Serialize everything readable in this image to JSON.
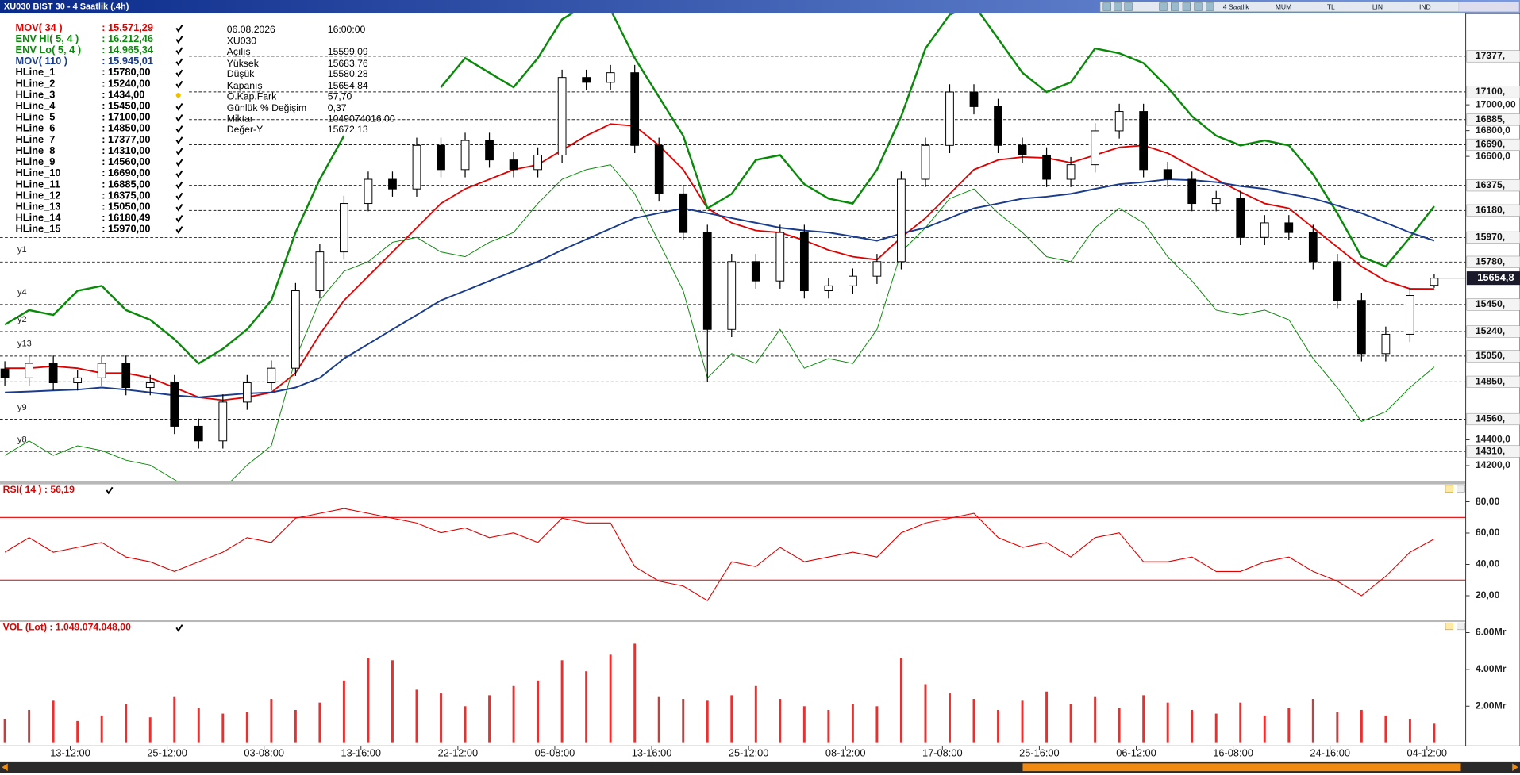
{
  "window": {
    "title": "XU030 BIST 30 - 4 Saatlik (.4h)",
    "toolbar": [
      "4 Saatlik",
      "MUM",
      "TL",
      "LIN",
      "IND"
    ]
  },
  "info": [
    [
      "06.08.2026",
      "16:00:00"
    ],
    [
      "XU030"
    ],
    [
      "Açılış",
      "15599,09"
    ],
    [
      "Yüksek",
      "15683,76"
    ],
    [
      "Düşük",
      "15580,28"
    ],
    [
      "Kapanış",
      "15654,84"
    ],
    [
      "Ö.Kap.Fark",
      "57,70"
    ],
    [
      "Günlük % Değişim",
      "0,37"
    ],
    [
      "Miktar",
      "1049074016,00"
    ],
    [
      "Değer-Y",
      "15672,13"
    ]
  ],
  "side_labels": [
    "y1",
    "y4",
    "y2",
    "y13",
    "y9",
    "y8"
  ],
  "chart_data": [
    {
      "type": "candlestick",
      "xlim": [
        -0.2,
        60.3
      ],
      "ylim": [
        14077,
        17708
      ],
      "yticks": [
        {
          "value": 17000,
          "label": "17000,00"
        },
        {
          "value": 16800,
          "label": "16800,0"
        },
        {
          "value": 16600,
          "label": "16600,0"
        },
        {
          "value": 14400,
          "label": "14400,0"
        },
        {
          "value": 14200,
          "label": "14200,0"
        }
      ],
      "last_label": "15654,8",
      "open": [
        14950,
        14881,
        14994,
        14843,
        14881,
        14994,
        14806,
        14843,
        14505,
        14392,
        14693,
        14843,
        14956,
        15557,
        15858,
        16234,
        16422,
        16347,
        16685,
        16497,
        16723,
        16572,
        16497,
        16610,
        17212,
        17174,
        17249,
        16685,
        16309,
        16009,
        15257,
        15783,
        15633,
        16009,
        15557,
        15595,
        15670,
        15783,
        16422,
        16685,
        17099,
        16986,
        16685,
        16610,
        16422,
        16535,
        16798,
        16948,
        16497,
        16422,
        16234,
        16272,
        15971,
        16084,
        16009,
        15783,
        15482,
        15069,
        15219,
        15599.09
      ],
      "high": [
        15010,
        15054,
        15054,
        14941,
        15054,
        15054,
        14903,
        14903,
        14565,
        14753,
        14903,
        15016,
        15617,
        15918,
        16294,
        16482,
        16482,
        16745,
        16745,
        16783,
        16783,
        16632,
        16670,
        17272,
        17272,
        17309,
        17309,
        16745,
        16369,
        16069,
        15843,
        15843,
        16069,
        16069,
        15655,
        15730,
        15843,
        16482,
        16745,
        17159,
        17159,
        17046,
        16745,
        16670,
        16595,
        16858,
        17008,
        17008,
        16557,
        16482,
        16332,
        16332,
        16144,
        16144,
        16069,
        15843,
        15542,
        15279,
        15580,
        15683.76
      ],
      "low": [
        14821,
        14821,
        14783,
        14783,
        14821,
        14746,
        14746,
        14445,
        14332,
        14332,
        14633,
        14783,
        14896,
        15497,
        15798,
        16174,
        16287,
        16287,
        16437,
        16437,
        16512,
        16437,
        16437,
        16550,
        17114,
        17114,
        16625,
        16249,
        15949,
        14850,
        15197,
        15573,
        15573,
        15497,
        15497,
        15535,
        15610,
        15723,
        16362,
        16625,
        16926,
        16625,
        16550,
        16362,
        16362,
        16475,
        16738,
        16437,
        16362,
        16174,
        16174,
        15911,
        15911,
        15949,
        15723,
        15422,
        15009,
        15009,
        15159,
        15580.28
      ],
      "close": [
        14881,
        14994,
        14843,
        14881,
        14994,
        14806,
        14843,
        14505,
        14392,
        14693,
        14843,
        14956,
        15557,
        15858,
        16234,
        16422,
        16347,
        16685,
        16497,
        16723,
        16572,
        16497,
        16610,
        17212,
        17174,
        17249,
        16685,
        16309,
        16009,
        15257,
        15783,
        15633,
        16009,
        15557,
        15595,
        15670,
        15783,
        16422,
        16685,
        17099,
        16986,
        16685,
        16610,
        16422,
        16535,
        16798,
        16948,
        16497,
        16422,
        16234,
        16272,
        15971,
        16084,
        16009,
        15783,
        15482,
        15069,
        15219,
        15520,
        15654.84
      ],
      "series": [
        {
          "name": "MOV( 34 )",
          "last_label": ": 15.571,29",
          "color": "#e00000",
          "values": [
            14956,
            14956,
            14971,
            14956,
            14918,
            14918,
            14881,
            14806,
            14730,
            14708,
            14730,
            14768,
            14918,
            15219,
            15482,
            15670,
            15858,
            16046,
            16234,
            16347,
            16422,
            16497,
            16535,
            16648,
            16760,
            16851,
            16836,
            16685,
            16497,
            16197,
            16084,
            16024,
            16009,
            15948,
            15873,
            15821,
            15798,
            15971,
            16121,
            16309,
            16497,
            16572,
            16595,
            16588,
            16550,
            16610,
            16670,
            16685,
            16625,
            16520,
            16422,
            16324,
            16234,
            16197,
            16046,
            15896,
            15745,
            15633,
            15572,
            15571.29
          ]
        },
        {
          "name": "ENV Hi( 5, 4 )",
          "last_label": ": 16.212,46",
          "color": "#0a8a0a",
          "values": [
            15294,
            15407,
            15369,
            15557,
            15595,
            15407,
            15332,
            15181,
            14993,
            15106,
            15257,
            15482,
            16009,
            16422,
            16760,
            null,
            null,
            null,
            17136,
            17362,
            17249,
            17136,
            17362,
            17663,
            17776,
            17738,
            17362,
            17061,
            16760,
            16197,
            16309,
            16572,
            16610,
            16384,
            16272,
            16234,
            16497,
            16911,
            17437,
            17700,
            17776,
            17512,
            17249,
            17099,
            17174,
            17437,
            17400,
            17324,
            17136,
            16911,
            16760,
            16685,
            16723,
            16685,
            16460,
            16159,
            15821,
            15745,
            15971,
            16212.46
          ]
        },
        {
          "name": "ENV Lo( 5, 4 )",
          "last_label": ": 14.965,34",
          "color": "#0a8a0a",
          "values": [
            14279,
            14392,
            14279,
            14354,
            14317,
            14242,
            14204,
            14091,
            13978,
            14016,
            14204,
            14354,
            15031,
            15482,
            15708,
            15783,
            15933,
            15971,
            15858,
            15821,
            15933,
            16009,
            16234,
            16422,
            16497,
            16535,
            16309,
            15933,
            15557,
            14881,
            15069,
            14993,
            15257,
            14956,
            15031,
            14993,
            15257,
            15858,
            16046,
            16272,
            16347,
            16159,
            16009,
            15821,
            15783,
            16046,
            16197,
            16084,
            15821,
            15633,
            15407,
            15369,
            15407,
            15332,
            15031,
            14806,
            14542,
            14618,
            14806,
            14965.34
          ]
        },
        {
          "name": "MOV( 110 )",
          "last_label": ": 15.945,01",
          "color": "#1a3c8c",
          "values": [
            14768,
            14775,
            14783,
            14790,
            14806,
            14790,
            14768,
            14745,
            14730,
            14745,
            14760,
            14768,
            14806,
            14881,
            15031,
            15144,
            15257,
            15369,
            15482,
            15557,
            15633,
            15708,
            15783,
            15873,
            15956,
            16039,
            16121,
            16159,
            16197,
            16159,
            16121,
            16084,
            16046,
            16024,
            16009,
            15978,
            15945,
            16001,
            16046,
            16121,
            16197,
            16234,
            16272,
            16287,
            16309,
            16347,
            16384,
            16400,
            16422,
            16415,
            16400,
            16369,
            16347,
            16309,
            16272,
            16219,
            16159,
            16084,
            16009,
            15945.01
          ]
        }
      ],
      "hlines": [
        {
          "name": "HLine_1",
          "value": 15780,
          "label": ": 15780,00",
          "axis_label": "15780,"
        },
        {
          "name": "HLine_2",
          "value": 15240,
          "label": ": 15240,00",
          "axis_label": "15240,"
        },
        {
          "name": "HLine_3",
          "value": 1434,
          "label": ": 1434,00"
        },
        {
          "name": "HLine_4",
          "value": 15450,
          "label": ": 15450,00",
          "axis_label": "15450,"
        },
        {
          "name": "HLine_5",
          "value": 17100,
          "label": ": 17100,00",
          "axis_label": "17100,"
        },
        {
          "name": "HLine_6",
          "value": 14850,
          "label": ": 14850,00",
          "axis_label": "14850,"
        },
        {
          "name": "HLine_7",
          "value": 17377,
          "label": ": 17377,00",
          "axis_label": "17377,"
        },
        {
          "name": "HLine_8",
          "value": 14310,
          "label": ": 14310,00",
          "axis_label": "14310,"
        },
        {
          "name": "HLine_9",
          "value": 14560,
          "label": ": 14560,00",
          "axis_label": "14560,"
        },
        {
          "name": "HLine_10",
          "value": 16690,
          "label": ": 16690,00",
          "axis_label": "16690,"
        },
        {
          "name": "HLine_11",
          "value": 16885,
          "label": ": 16885,00",
          "axis_label": "16885,"
        },
        {
          "name": "HLine_12",
          "value": 16375,
          "label": ": 16375,00",
          "axis_label": "16375,"
        },
        {
          "name": "HLine_13",
          "value": 15050,
          "label": ": 15050,00",
          "axis_label": "15050,"
        },
        {
          "name": "HLine_14",
          "value": 16180,
          "label": ": 16180,49",
          "axis_label": "16180,"
        },
        {
          "name": "HLine_15",
          "value": 15970,
          "label": ": 15970,00",
          "axis_label": "15970,"
        }
      ]
    },
    {
      "type": "line",
      "title": "RSI( 14 ) : 56,19",
      "color": "#e00000",
      "xlim": [
        -0.2,
        60.3
      ],
      "ylim": [
        4.5,
        91.1
      ],
      "yticks": [
        {
          "value": 80,
          "label": "80,00"
        },
        {
          "value": 60,
          "label": "60,00"
        },
        {
          "value": 40,
          "label": "40,00"
        },
        {
          "value": 20,
          "label": "20,00"
        }
      ],
      "levels": [
        70,
        30
      ],
      "values": [
        47.8,
        57.1,
        47.8,
        50.9,
        54.0,
        44.7,
        41.7,
        35.5,
        41.7,
        47.8,
        57.1,
        54.0,
        69.5,
        72.6,
        75.7,
        72.6,
        69.5,
        66.4,
        60.2,
        63.3,
        57.1,
        60.2,
        54.0,
        69.5,
        66.4,
        66.4,
        38.6,
        29.3,
        26.2,
        16.9,
        41.7,
        38.6,
        50.9,
        41.7,
        44.7,
        47.8,
        44.7,
        60.2,
        66.4,
        69.5,
        72.6,
        57.1,
        50.9,
        54.0,
        44.7,
        57.1,
        60.2,
        41.7,
        41.7,
        44.7,
        35.5,
        35.5,
        41.7,
        44.7,
        35.5,
        29.3,
        20,
        32.4,
        47.8,
        56.19
      ]
    },
    {
      "type": "bar",
      "title": "VOL (Lot) : 1.049.074.048,00",
      "color": "#e83030",
      "xlim": [
        -0.2,
        60.3
      ],
      "ylim": [
        0,
        6.58
      ],
      "yticks": [
        {
          "value": 6,
          "label": "6.00Mr"
        },
        {
          "value": 4,
          "label": "4.00Mr"
        },
        {
          "value": 2,
          "label": "2.00Mr"
        }
      ],
      "xticks": [
        {
          "value": 2.7,
          "label": "13-12:00"
        },
        {
          "value": 6.7,
          "label": "25-12:00"
        },
        {
          "value": 10.7,
          "label": "03-08:00"
        },
        {
          "value": 14.7,
          "label": "13-16:00"
        },
        {
          "value": 18.7,
          "label": "22-12:00"
        },
        {
          "value": 22.7,
          "label": "05-08:00"
        },
        {
          "value": 26.7,
          "label": "13-16:00"
        },
        {
          "value": 30.7,
          "label": "25-12:00"
        },
        {
          "value": 34.7,
          "label": "08-12:00"
        },
        {
          "value": 38.7,
          "label": "17-08:00"
        },
        {
          "value": 42.7,
          "label": "25-16:00"
        },
        {
          "value": 46.7,
          "label": "06-12:00"
        },
        {
          "value": 50.7,
          "label": "16-08:00"
        },
        {
          "value": 54.7,
          "label": "24-16:00"
        },
        {
          "value": 58.7,
          "label": "04-12:00"
        }
      ],
      "values": [
        1.3,
        1.8,
        2.3,
        1.2,
        1.5,
        2.1,
        1.4,
        2.5,
        1.9,
        1.6,
        1.7,
        2.4,
        1.8,
        2.2,
        3.4,
        4.6,
        4.5,
        2.9,
        2.7,
        2.0,
        2.6,
        3.1,
        3.4,
        4.5,
        3.9,
        4.8,
        5.4,
        2.5,
        2.4,
        2.3,
        2.6,
        3.1,
        2.4,
        2.0,
        1.8,
        2.1,
        2.0,
        4.6,
        3.2,
        2.7,
        2.4,
        1.8,
        2.3,
        2.8,
        2.1,
        2.5,
        1.9,
        2.6,
        2.2,
        1.8,
        1.6,
        2.2,
        1.5,
        1.9,
        2.4,
        1.7,
        1.8,
        1.5,
        1.3,
        1.049074048
      ]
    }
  ]
}
